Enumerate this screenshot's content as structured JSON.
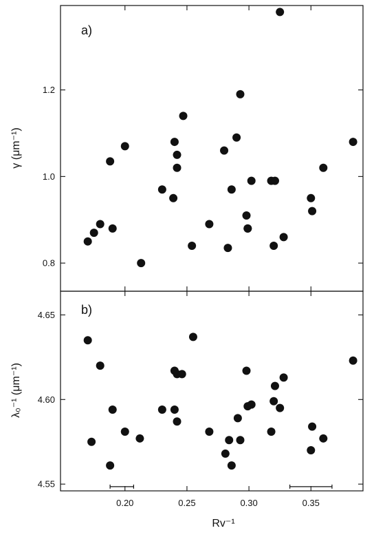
{
  "chart_data": [
    {
      "type": "scatter",
      "panel_label": "a)",
      "ylabel": "γ (μm⁻¹)",
      "xlabel": "",
      "xlim": [
        0.148,
        0.392
      ],
      "ylim": [
        0.735,
        1.395
      ],
      "xticks": [
        0.2,
        0.25,
        0.3,
        0.35
      ],
      "yticks": [
        0.8,
        1.0,
        1.2
      ],
      "ytick_labels": [
        "0.8",
        "1.0",
        "1.2"
      ],
      "x": [
        0.17,
        0.175,
        0.18,
        0.188,
        0.19,
        0.2,
        0.213,
        0.23,
        0.239,
        0.24,
        0.242,
        0.242,
        0.247,
        0.254,
        0.268,
        0.28,
        0.283,
        0.286,
        0.29,
        0.293,
        0.298,
        0.299,
        0.299,
        0.302,
        0.318,
        0.32,
        0.321,
        0.325,
        0.328,
        0.35,
        0.351,
        0.36,
        0.384
      ],
      "y": [
        0.85,
        0.87,
        0.89,
        1.035,
        0.88,
        1.07,
        0.8,
        0.97,
        0.95,
        1.08,
        1.05,
        1.02,
        1.14,
        0.84,
        0.89,
        1.06,
        0.835,
        0.97,
        1.09,
        1.19,
        0.91,
        0.88,
        0.88,
        0.99,
        0.99,
        0.84,
        0.99,
        1.38,
        0.86,
        0.95,
        0.92,
        1.02,
        1.08
      ]
    },
    {
      "type": "scatter",
      "panel_label": "b)",
      "ylabel": "λ₀⁻¹ (μm⁻¹)",
      "xlabel": "Rv⁻¹",
      "xlim": [
        0.148,
        0.392
      ],
      "ylim": [
        4.546,
        4.664
      ],
      "xticks": [
        0.2,
        0.25,
        0.3,
        0.35
      ],
      "xtick_labels": [
        "0.20",
        "0.25",
        "0.30",
        "0.35"
      ],
      "yticks": [
        4.55,
        4.6,
        4.65
      ],
      "ytick_labels": [
        "4.55",
        "4.60",
        "4.65"
      ],
      "x": [
        0.17,
        0.173,
        0.18,
        0.188,
        0.19,
        0.2,
        0.212,
        0.23,
        0.24,
        0.24,
        0.242,
        0.242,
        0.246,
        0.255,
        0.268,
        0.281,
        0.284,
        0.286,
        0.291,
        0.293,
        0.298,
        0.299,
        0.302,
        0.318,
        0.32,
        0.321,
        0.325,
        0.328,
        0.35,
        0.351,
        0.36,
        0.384
      ],
      "y": [
        4.635,
        4.575,
        4.62,
        4.561,
        4.594,
        4.581,
        4.577,
        4.594,
        4.594,
        4.617,
        4.615,
        4.587,
        4.615,
        4.637,
        4.581,
        4.568,
        4.576,
        4.561,
        4.589,
        4.576,
        4.617,
        4.596,
        4.597,
        4.581,
        4.599,
        4.608,
        4.595,
        4.613,
        4.57,
        4.584,
        4.577,
        4.623
      ],
      "error_bars_x": [
        {
          "x_from": 0.188,
          "x_to": 0.207,
          "y": 4.5485
        },
        {
          "x_from": 0.333,
          "x_to": 0.367,
          "y": 4.5485
        }
      ]
    }
  ]
}
